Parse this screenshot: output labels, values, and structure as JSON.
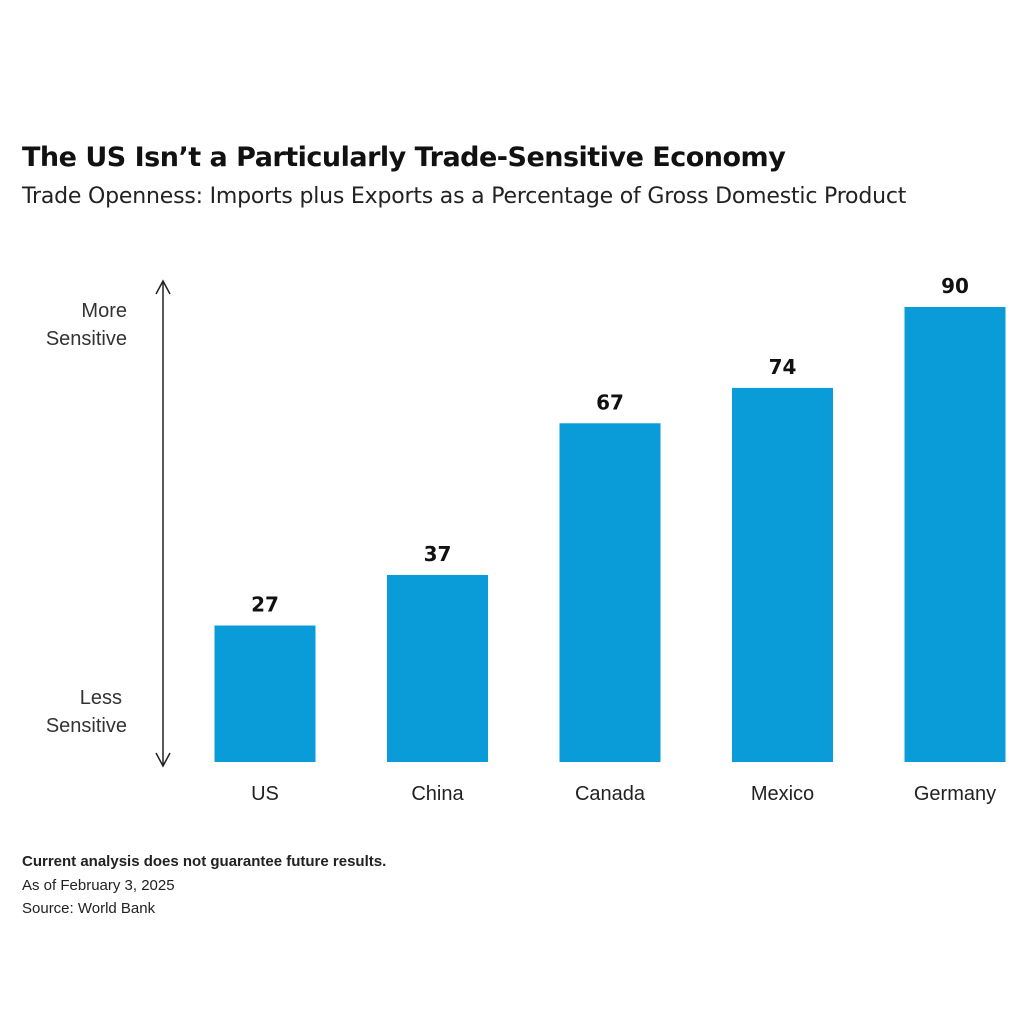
{
  "title": "The US Isn’t a Particularly Trade-Sensitive Economy",
  "subtitle": "Trade Openness: Imports plus Exports as a Percentage of Gross Domestic Product",
  "axis": {
    "top_label_line1": "More",
    "top_label_line2": "Sensitive",
    "bottom_label_line1": "Less",
    "bottom_label_line2": "Sensitive"
  },
  "footnotes": {
    "disclaimer": "Current analysis does not guarantee future results.",
    "as_of": "As of February 3, 2025",
    "source": "Source: World Bank"
  },
  "colors": {
    "bar": "#0a9cd8",
    "text": "#111111",
    "arrow": "#222222"
  },
  "chart_data": {
    "type": "bar",
    "title": "The US Isn’t a Particularly Trade-Sensitive Economy",
    "subtitle": "Trade Openness: Imports plus Exports as a Percentage of Gross Domestic Product",
    "categories": [
      "US",
      "China",
      "Canada",
      "Mexico",
      "Germany"
    ],
    "values": [
      27,
      37,
      67,
      74,
      90
    ],
    "data_labels": [
      "27",
      "37",
      "67",
      "74",
      "90"
    ],
    "xlabel": "",
    "ylabel": "",
    "ylim": [
      0,
      90
    ],
    "grid": false,
    "legend": "none"
  }
}
